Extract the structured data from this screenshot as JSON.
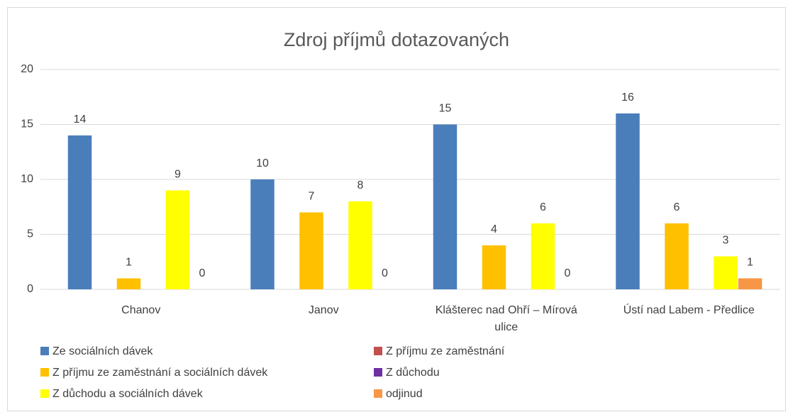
{
  "chart_data": {
    "type": "bar",
    "title": "Zdroj příjmů dotazovaných",
    "categories": [
      "Chanov",
      "Janov",
      "Klášterec nad Ohří – Mírová ulice",
      "Ústí nad Labem - Předlice"
    ],
    "series": [
      {
        "name": "Ze sociálních dávek",
        "color": "#4a7ebb",
        "values": [
          14,
          10,
          15,
          16
        ]
      },
      {
        "name": "Z příjmu ze zaměstnání",
        "color": "#c0504d",
        "values": [
          null,
          null,
          null,
          null
        ]
      },
      {
        "name": "Z příjmu ze zaměstnání a sociálních dávek",
        "color": "#ffc000",
        "values": [
          1,
          7,
          4,
          6
        ]
      },
      {
        "name": "Z důchodu",
        "color": "#7030a0",
        "values": [
          null,
          null,
          null,
          null
        ]
      },
      {
        "name": "Z důchodu a sociálních dávek",
        "color": "#ffff00",
        "values": [
          9,
          8,
          6,
          3
        ]
      },
      {
        "name": "odjinud",
        "color": "#f79646",
        "values": [
          0,
          0,
          0,
          1
        ]
      }
    ],
    "ylim": [
      0,
      20
    ],
    "yticks": [
      0,
      5,
      10,
      15,
      20
    ],
    "grid": true,
    "legend": "bottom"
  }
}
